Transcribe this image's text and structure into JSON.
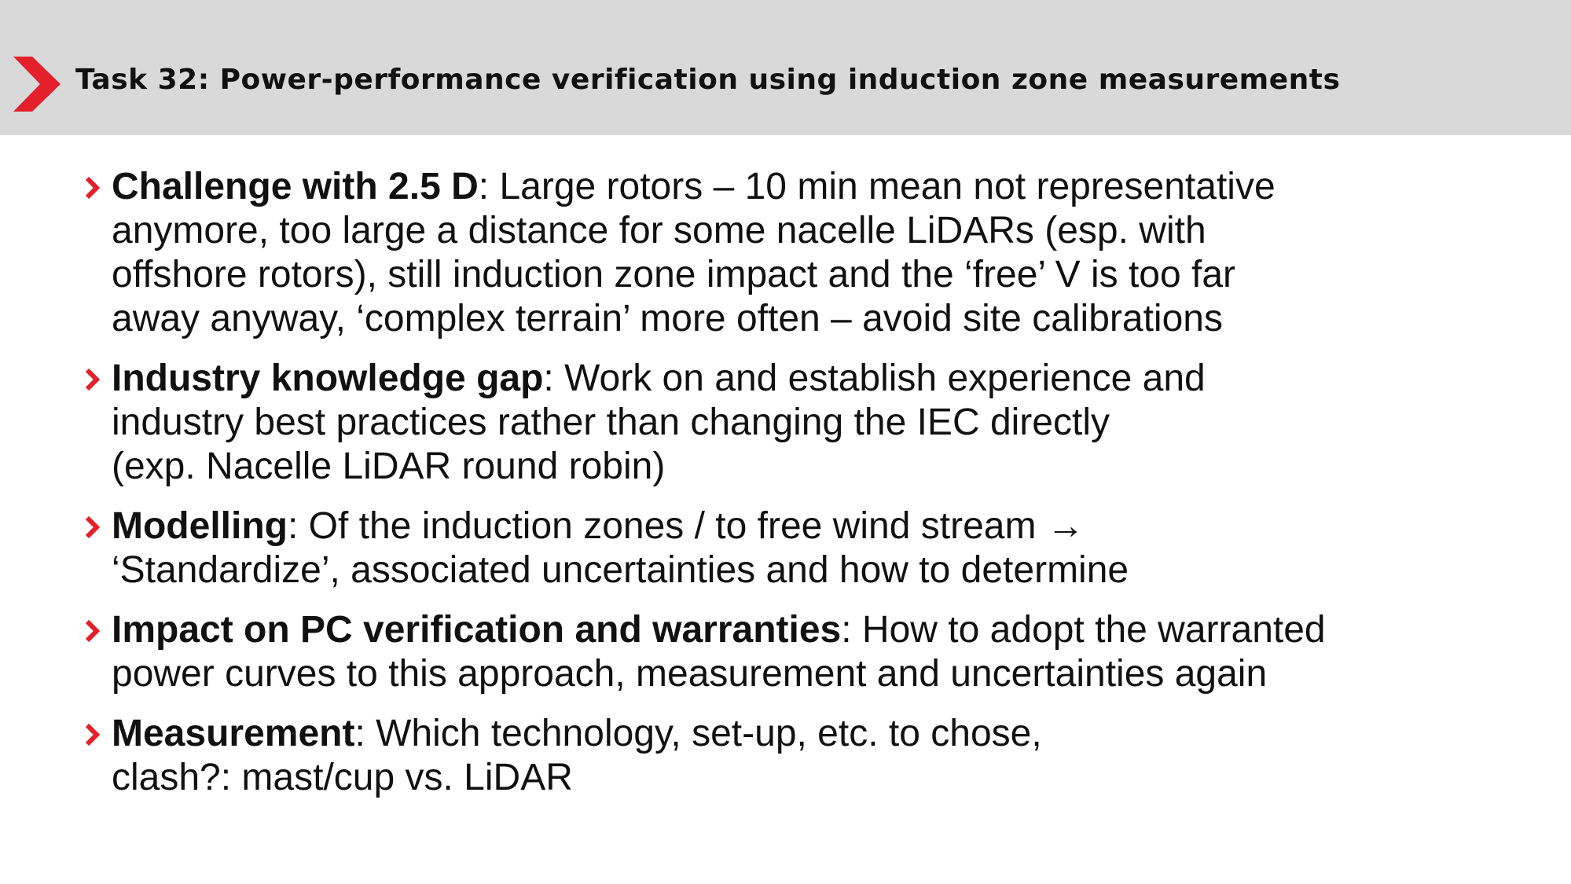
{
  "colors": {
    "accent": "#e3202b",
    "header_bg": "#d9d9d9",
    "text": "#111111"
  },
  "header": {
    "logo_icon": "red-chevron-icon",
    "title": "Task 32: Power-performance verification using induction zone measurements"
  },
  "bullets": [
    {
      "marker_icon": "chevron-right-icon",
      "heading": "Challenge with 2.5 D",
      "lines": [
        ": Large rotors – 10 min mean not representative",
        "anymore, too large a distance for some nacelle LiDARs (esp. with",
        "offshore rotors), still induction zone impact and the ‘free’ V is too far",
        "away anyway, ‘complex terrain’ more often – avoid site calibrations"
      ]
    },
    {
      "marker_icon": "chevron-right-icon",
      "heading": "Industry knowledge gap",
      "lines": [
        ": Work on and establish experience and",
        "industry best practices rather than changing the IEC directly",
        "(exp. Nacelle LiDAR round robin)"
      ]
    },
    {
      "marker_icon": "chevron-right-icon",
      "heading": "Modelling",
      "lines": [
        ": Of the induction zones / to free wind stream →",
        "‘Standardize’, associated uncertainties and how to determine"
      ]
    },
    {
      "marker_icon": "chevron-right-icon",
      "heading": "Impact on PC verification and warranties",
      "lines": [
        ": How to adopt the warranted",
        "power curves to this approach, measurement and uncertainties again"
      ]
    },
    {
      "marker_icon": "chevron-right-icon",
      "heading": "Measurement",
      "lines": [
        ": Which technology, set-up, etc. to chose,",
        "clash?: mast/cup vs. LiDAR"
      ]
    }
  ]
}
